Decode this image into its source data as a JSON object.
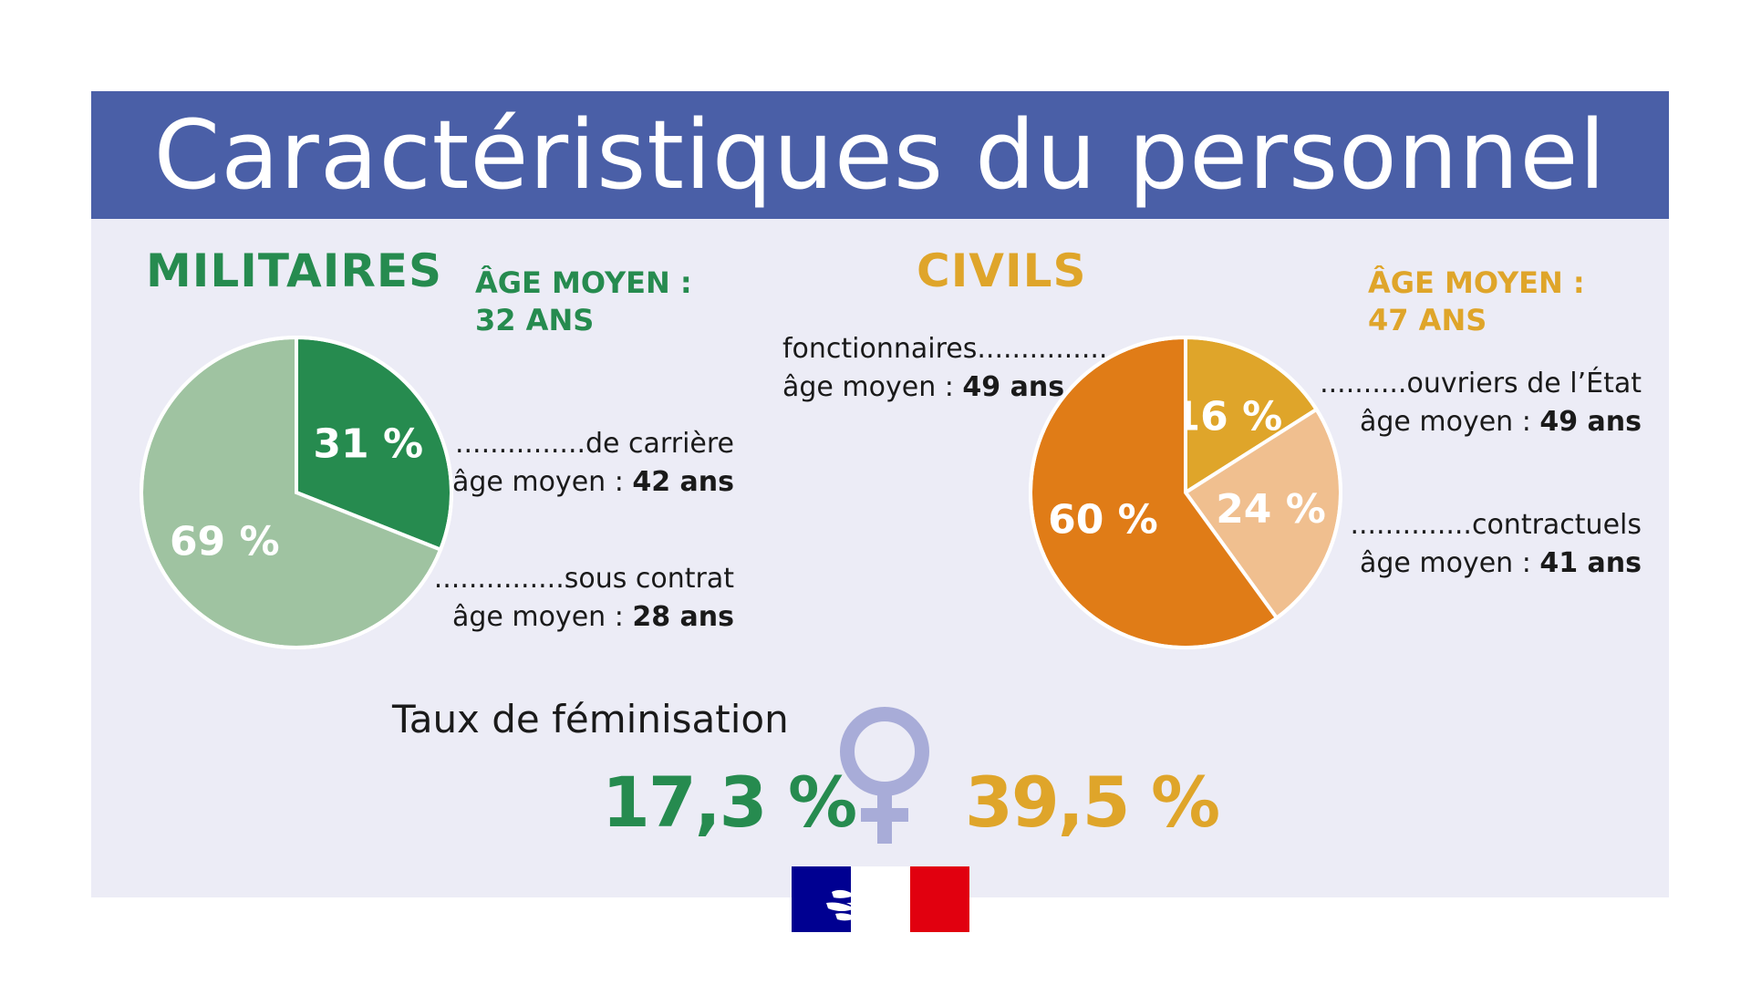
{
  "title": "Caractéristiques du personnel",
  "militaires": {
    "heading": "MILITAIRES",
    "age_line1": "ÂGE MOYEN :",
    "age_line2": "32 ANS",
    "carriere": {
      "label": "...............de carrière",
      "age_prefix": "âge moyen : ",
      "age_value": "42 ans"
    },
    "contrat": {
      "label": "...............sous contrat",
      "age_prefix": "âge moyen : ",
      "age_value": "28 ans"
    }
  },
  "civils": {
    "heading": "CIVILS",
    "age_line1": "ÂGE MOYEN :",
    "age_line2": "47 ANS",
    "fonctionnaires": {
      "label": "fonctionnaires...............",
      "age_prefix": "âge moyen : ",
      "age_value": "49 ans"
    },
    "ouvriers": {
      "label": "..........ouvriers de l’État",
      "age_prefix": "âge moyen : ",
      "age_value": "49 ans"
    },
    "contractuels": {
      "label": "..............contractuels",
      "age_prefix": "âge moyen : ",
      "age_value": "41 ans"
    }
  },
  "feminisation": {
    "label": "Taux de féminisation",
    "militaires": "17,3 %",
    "civils": "39,5 %"
  },
  "chart_data": [
    {
      "type": "pie",
      "title": "MILITAIRES",
      "categories": [
        "de carrière",
        "sous contrat"
      ],
      "values": [
        31,
        69
      ],
      "labels": [
        "31 %",
        "69 %"
      ],
      "colors": [
        "#268b4f",
        "#9fc3a1"
      ],
      "legend": "none"
    },
    {
      "type": "pie",
      "title": "CIVILS",
      "categories": [
        "ouvriers de l’État",
        "contractuels",
        "fonctionnaires"
      ],
      "values": [
        16,
        24,
        60
      ],
      "labels": [
        "16 %",
        "24 %",
        "60 %"
      ],
      "colors": [
        "#dfa52a",
        "#f0bf8f",
        "#e07c17"
      ],
      "legend": "none"
    }
  ],
  "colors": {
    "header": "#4a5fa7",
    "panel": "#ececf6",
    "militaires": "#268b4f",
    "civils": "#dfa52a",
    "venus_symbol": "#a8acd8"
  },
  "icons": {
    "feminisation": "venus-icon",
    "logo": "marianne-logo"
  }
}
